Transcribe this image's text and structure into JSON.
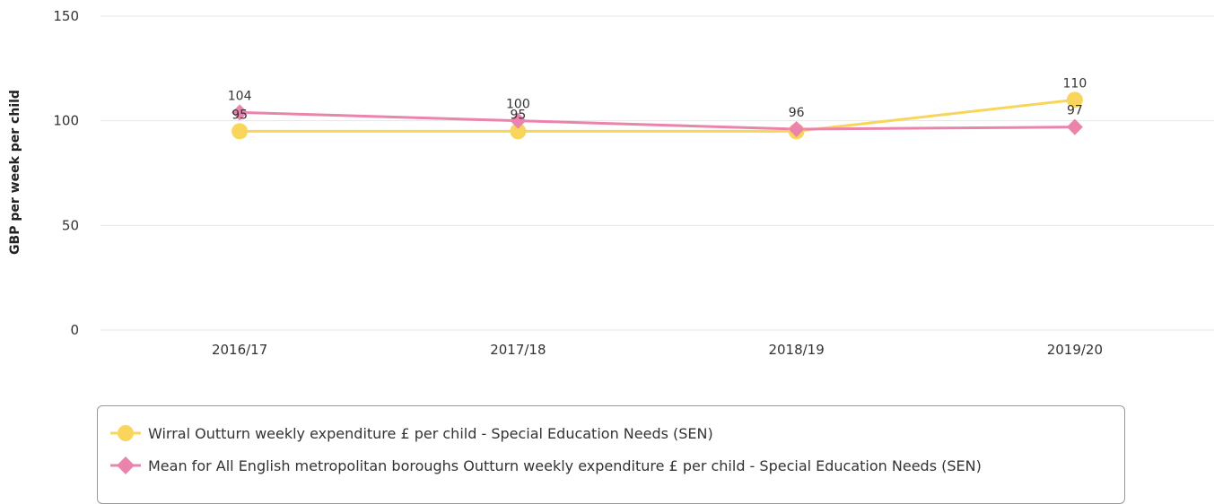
{
  "chart_data": {
    "type": "line",
    "categories": [
      "2016/17",
      "2017/18",
      "2018/19",
      "2019/20"
    ],
    "ylabel": "GBP per week per child",
    "ylim": [
      0,
      150
    ],
    "yticks": [
      0,
      50,
      100,
      150
    ],
    "grid": true,
    "legend_position": "bottom",
    "series": [
      {
        "name": "Wirral Outturn weekly expenditure £ per child - Special Education Needs (SEN)",
        "values": [
          95,
          95,
          95,
          110
        ],
        "labels": [
          "95",
          "95",
          "",
          "110"
        ],
        "color": "#f9d55c",
        "marker": "circle"
      },
      {
        "name": "Mean for All English metropolitan boroughs Outturn weekly expenditure £ per child - Special Education Needs (SEN)",
        "values": [
          104,
          100,
          96,
          97
        ],
        "labels": [
          "104",
          "100",
          "96",
          "97"
        ],
        "color": "#ea84ad",
        "marker": "diamond"
      }
    ]
  }
}
